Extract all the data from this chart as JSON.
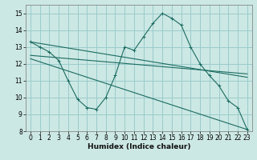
{
  "xlabel": "Humidex (Indice chaleur)",
  "background_color": "#cce8e4",
  "grid_color": "#99cccc",
  "line_color": "#1a6b60",
  "xlim": [
    -0.5,
    23.5
  ],
  "ylim": [
    8,
    15.5
  ],
  "yticks": [
    8,
    9,
    10,
    11,
    12,
    13,
    14,
    15
  ],
  "xticks": [
    0,
    1,
    2,
    3,
    4,
    5,
    6,
    7,
    8,
    9,
    10,
    11,
    12,
    13,
    14,
    15,
    16,
    17,
    18,
    19,
    20,
    21,
    22,
    23
  ],
  "series1_x": [
    0,
    1,
    2,
    3,
    4,
    5,
    6,
    7,
    8,
    9,
    10,
    11,
    12,
    13,
    14,
    15,
    16,
    17,
    18,
    19,
    20,
    21,
    22,
    23
  ],
  "series1_y": [
    13.3,
    13.0,
    12.7,
    12.2,
    11.0,
    9.9,
    9.4,
    9.3,
    10.0,
    11.3,
    13.0,
    12.8,
    13.6,
    14.4,
    15.0,
    14.7,
    14.3,
    13.0,
    12.0,
    11.3,
    10.7,
    9.8,
    9.4,
    8.1
  ],
  "line1_x": [
    0,
    23
  ],
  "line1_y": [
    13.3,
    11.2
  ],
  "line2_x": [
    0,
    23
  ],
  "line2_y": [
    12.5,
    11.4
  ],
  "line3_x": [
    0,
    23
  ],
  "line3_y": [
    12.3,
    8.1
  ]
}
